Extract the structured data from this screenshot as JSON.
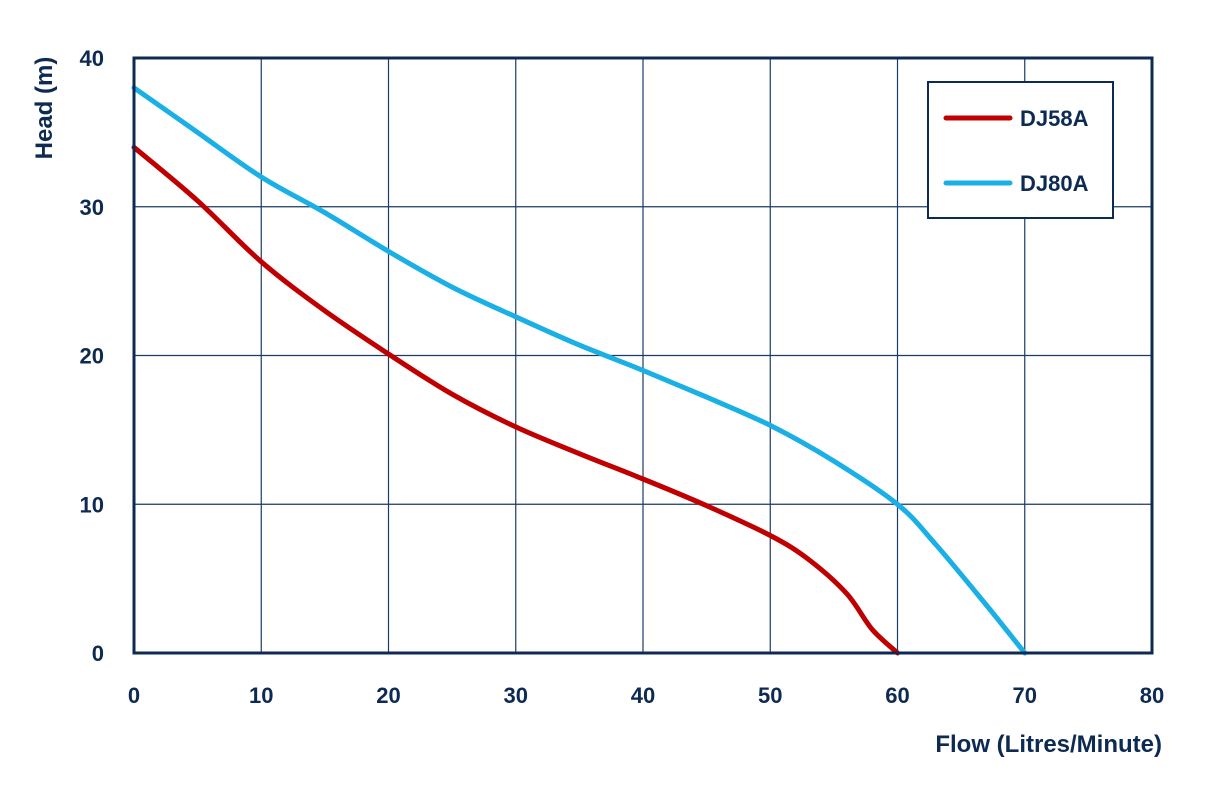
{
  "chart_data": {
    "type": "line",
    "title": "",
    "xlabel": "Flow (Litres/Minute)",
    "ylabel": "Head (m)",
    "xlim": [
      0,
      80
    ],
    "ylim": [
      0,
      40
    ],
    "x_ticks": [
      "0",
      "10",
      "20",
      "30",
      "40",
      "50",
      "60",
      "70",
      "80"
    ],
    "y_ticks": [
      "0",
      "10",
      "20",
      "30",
      "40"
    ],
    "grid": true,
    "legend_position": "top-right",
    "series": [
      {
        "name": "DJ58A",
        "color": "#c00000",
        "points": [
          [
            0,
            34
          ],
          [
            5,
            30.4
          ],
          [
            10,
            26.3
          ],
          [
            15,
            23
          ],
          [
            20,
            20.1
          ],
          [
            25,
            17.4
          ],
          [
            30,
            15.2
          ],
          [
            35,
            13.4
          ],
          [
            40,
            11.7
          ],
          [
            45,
            9.9
          ],
          [
            50,
            7.9
          ],
          [
            53,
            6.3
          ],
          [
            56,
            4
          ],
          [
            58,
            1.6
          ],
          [
            60,
            0
          ]
        ]
      },
      {
        "name": "DJ80A",
        "color": "#1ab0e6",
        "points": [
          [
            0,
            38
          ],
          [
            5,
            35
          ],
          [
            10,
            32
          ],
          [
            15,
            29.6
          ],
          [
            20,
            27
          ],
          [
            25,
            24.6
          ],
          [
            30,
            22.6
          ],
          [
            35,
            20.7
          ],
          [
            40,
            19
          ],
          [
            45,
            17.2
          ],
          [
            50,
            15.3
          ],
          [
            55,
            12.9
          ],
          [
            60,
            10
          ],
          [
            63,
            7.3
          ],
          [
            67,
            3.2
          ],
          [
            70,
            0
          ]
        ]
      }
    ]
  }
}
